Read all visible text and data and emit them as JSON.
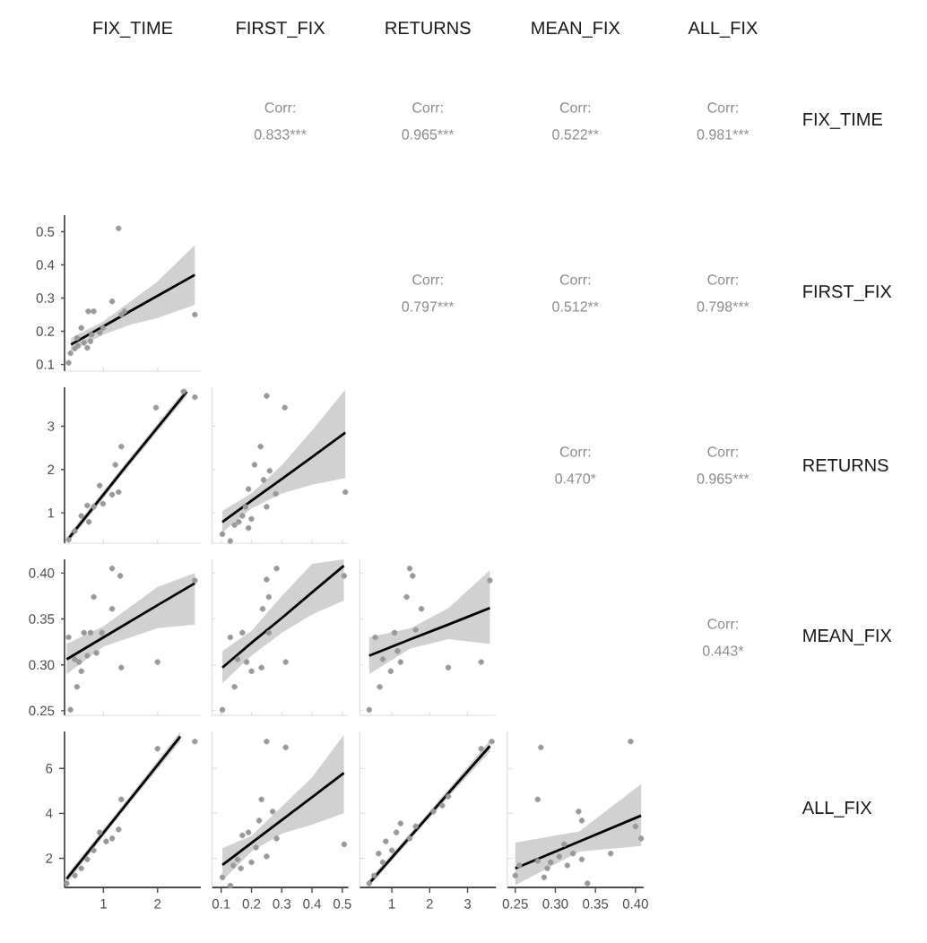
{
  "chart_data": [
    {
      "type": "other",
      "annotations": [
        "FIX_TIME",
        "FIRST_FIX",
        "RETURNS",
        "MEAN_FIX",
        "ALL_FIX",
        "FIX_TIME",
        "FIRST_FIX",
        "RETURNS",
        "MEAN_FIX",
        "ALL_FIX"
      ]
    },
    {
      "type": "other",
      "annotations": [
        "Corr:",
        "0.833***"
      ]
    },
    {
      "type": "other",
      "annotations": [
        "Corr:",
        "0.965***"
      ]
    },
    {
      "type": "other",
      "annotations": [
        "Corr:",
        "0.522**"
      ]
    },
    {
      "type": "other",
      "annotations": [
        "Corr:",
        "0.981***"
      ]
    },
    {
      "type": "scatter",
      "tick_labels": "y",
      "xlim": [
        0.28,
        2.8
      ],
      "xticks": [
        1,
        2
      ],
      "ylim": [
        0.08,
        0.55
      ],
      "yticks": [
        0.1,
        0.2,
        0.3,
        0.4,
        0.5
      ],
      "series": [
        {
          "type": "scatter",
          "color": "#999999",
          "x": [
            0.355,
            0.39,
            0.47,
            0.53,
            0.51,
            0.59,
            0.64,
            0.7,
            0.76,
            0.72,
            0.82,
            0.78,
            0.93,
            0.99,
            1.16,
            1.28,
            1.33,
            1.39,
            2.69
          ],
          "values": [
            0.105,
            0.134,
            0.148,
            0.156,
            0.18,
            0.21,
            0.165,
            0.15,
            0.17,
            0.26,
            0.26,
            0.19,
            0.196,
            0.21,
            0.29,
            0.51,
            0.25,
            0.26,
            0.25
          ]
        },
        {
          "type": "line",
          "color": "#000000",
          "x": [
            0.4,
            1.0,
            1.5,
            2.0,
            2.69
          ],
          "values": [
            0.16,
            0.215,
            0.261,
            0.307,
            0.37
          ],
          "lower": [
            0.14,
            0.19,
            0.22,
            0.24,
            0.28
          ],
          "upper": [
            0.18,
            0.23,
            0.29,
            0.35,
            0.46
          ]
        }
      ]
    },
    {
      "type": "other",
      "annotations": [
        "Corr:",
        "0.797***"
      ]
    },
    {
      "type": "other",
      "annotations": [
        "Corr:",
        "0.512**"
      ]
    },
    {
      "type": "other",
      "annotations": [
        "Corr:",
        "0.798***"
      ]
    },
    {
      "type": "scatter",
      "tick_labels": "y",
      "xlim": [
        0.28,
        2.8
      ],
      "xticks": [
        1,
        2
      ],
      "ylim": [
        0.3,
        3.9
      ],
      "yticks": [
        1,
        2,
        3
      ],
      "series": [
        {
          "type": "scatter",
          "color": "#999999",
          "x": [
            0.355,
            0.47,
            0.59,
            0.7,
            0.73,
            0.82,
            0.93,
            0.99,
            1.16,
            1.28,
            1.22,
            1.33,
            1.97,
            2.48,
            2.69
          ],
          "values": [
            0.38,
            0.58,
            0.93,
            1.17,
            0.79,
            1.14,
            1.63,
            1.21,
            1.42,
            1.48,
            2.11,
            2.53,
            3.43,
            3.8,
            3.67
          ]
        },
        {
          "type": "line",
          "color": "#000000",
          "x": [
            0.35,
            1.4,
            2.54
          ],
          "values": [
            0.4,
            2.05,
            3.8
          ],
          "lower": [
            0.31,
            1.97,
            3.7
          ],
          "upper": [
            0.49,
            2.13,
            3.9
          ]
        }
      ]
    },
    {
      "type": "scatter",
      "tick_labels": false,
      "xlim": [
        0.07,
        0.52
      ],
      "xticks": [
        0.1,
        0.2,
        0.3,
        0.4,
        0.5
      ],
      "ylim": [
        0.3,
        3.9
      ],
      "yticks": [
        1,
        2,
        3
      ],
      "series": [
        {
          "type": "scatter",
          "color": "#999999",
          "x": [
            0.104,
            0.13,
            0.144,
            0.158,
            0.17,
            0.18,
            0.19,
            0.2,
            0.21,
            0.19,
            0.23,
            0.24,
            0.25,
            0.25,
            0.26,
            0.28,
            0.31,
            0.51
          ],
          "values": [
            0.51,
            0.35,
            0.72,
            0.79,
            0.93,
            1.14,
            0.65,
            0.86,
            2.11,
            1.55,
            2.53,
            1.76,
            3.7,
            1.14,
            1.97,
            1.44,
            3.43,
            1.48
          ]
        },
        {
          "type": "line",
          "color": "#000000",
          "x": [
            0.104,
            0.2,
            0.3,
            0.4,
            0.51
          ],
          "values": [
            0.79,
            1.28,
            1.78,
            2.29,
            2.85
          ],
          "lower": [
            0.55,
            1.1,
            1.45,
            1.65,
            1.8
          ],
          "upper": [
            1.05,
            1.45,
            2.1,
            2.9,
            3.85
          ]
        }
      ]
    },
    {
      "type": "other",
      "annotations": [
        "Corr:",
        "0.470*"
      ]
    },
    {
      "type": "other",
      "annotations": [
        "Corr:",
        "0.965***"
      ]
    },
    {
      "type": "scatter",
      "tick_labels": "y",
      "xlim": [
        0.28,
        2.8
      ],
      "xticks": [
        1,
        2
      ],
      "ylim": [
        0.245,
        0.415
      ],
      "yticks": [
        {
          "value": 0.25,
          "label": "0.25"
        },
        {
          "value": 0.3,
          "label": "0.30"
        },
        {
          "value": 0.35,
          "label": "0.35"
        },
        {
          "value": 0.4,
          "label": "0.40"
        }
      ],
      "series": [
        {
          "type": "scatter",
          "color": "#999999",
          "x": [
            0.355,
            0.39,
            0.47,
            0.51,
            0.55,
            0.59,
            0.64,
            0.7,
            0.76,
            0.82,
            0.87,
            0.97,
            1.16,
            1.16,
            1.31,
            1.33,
            2.0,
            2.69
          ],
          "values": [
            0.33,
            0.251,
            0.306,
            0.276,
            0.303,
            0.293,
            0.335,
            0.31,
            0.335,
            0.374,
            0.313,
            0.335,
            0.405,
            0.361,
            0.397,
            0.297,
            0.303,
            0.392
          ]
        },
        {
          "type": "line",
          "color": "#000000",
          "x": [
            0.32,
            1.0,
            2.0,
            2.69
          ],
          "values": [
            0.306,
            0.33,
            0.365,
            0.389
          ],
          "lower": [
            0.29,
            0.32,
            0.34,
            0.344
          ],
          "upper": [
            0.323,
            0.342,
            0.385,
            0.4
          ]
        }
      ]
    },
    {
      "type": "scatter",
      "tick_labels": false,
      "xlim": [
        0.07,
        0.52
      ],
      "xticks": [
        0.1,
        0.2,
        0.3,
        0.4,
        0.5
      ],
      "ylim": [
        0.245,
        0.415
      ],
      "yticks": [
        0.25,
        0.3,
        0.35,
        0.4
      ],
      "series": [
        {
          "type": "scatter",
          "color": "#999999",
          "x": [
            0.104,
            0.13,
            0.144,
            0.154,
            0.17,
            0.184,
            0.2,
            0.233,
            0.237,
            0.25,
            0.257,
            0.257,
            0.283,
            0.313,
            0.506
          ],
          "values": [
            0.251,
            0.33,
            0.276,
            0.306,
            0.335,
            0.303,
            0.293,
            0.297,
            0.361,
            0.393,
            0.374,
            0.335,
            0.405,
            0.303,
            0.397
          ]
        },
        {
          "type": "line",
          "color": "#000000",
          "x": [
            0.104,
            0.2,
            0.3,
            0.4,
            0.505
          ],
          "values": [
            0.297,
            0.324,
            0.351,
            0.379,
            0.408
          ],
          "lower": [
            0.28,
            0.31,
            0.335,
            0.355,
            0.37
          ],
          "upper": [
            0.315,
            0.337,
            0.375,
            0.41,
            0.415
          ]
        }
      ]
    },
    {
      "type": "scatter",
      "tick_labels": false,
      "xlim": [
        0.15,
        3.75
      ],
      "xticks": [
        1,
        2,
        3
      ],
      "ylim": [
        0.245,
        0.415
      ],
      "yticks": [
        0.25,
        0.3,
        0.35,
        0.4
      ],
      "series": [
        {
          "type": "scatter",
          "color": "#999999",
          "x": [
            0.4,
            0.56,
            0.68,
            0.76,
            0.97,
            1.07,
            1.15,
            1.23,
            1.39,
            1.47,
            1.55,
            1.63,
            1.78,
            2.49,
            3.36,
            3.59
          ],
          "values": [
            0.251,
            0.33,
            0.276,
            0.306,
            0.293,
            0.335,
            0.315,
            0.303,
            0.374,
            0.405,
            0.397,
            0.338,
            0.361,
            0.297,
            0.303,
            0.392
          ]
        },
        {
          "type": "line",
          "color": "#000000",
          "x": [
            0.4,
            1.5,
            2.5,
            3.59
          ],
          "values": [
            0.31,
            0.328,
            0.344,
            0.362
          ],
          "lower": [
            0.29,
            0.318,
            0.328,
            0.323
          ],
          "upper": [
            0.33,
            0.34,
            0.362,
            0.403
          ]
        }
      ]
    },
    {
      "type": "other",
      "annotations": [
        "Corr:",
        "0.443*"
      ]
    },
    {
      "type": "scatter",
      "xlim": [
        0.28,
        2.8
      ],
      "xticks": [
        1,
        2
      ],
      "ylim": [
        0.7,
        7.65
      ],
      "yticks": [
        2,
        4,
        6
      ],
      "series": [
        {
          "type": "scatter",
          "color": "#999999",
          "x": [
            0.32,
            0.47,
            0.59,
            0.7,
            0.82,
            0.93,
            1.05,
            1.16,
            1.28,
            1.33,
            2.0,
            2.69
          ],
          "values": [
            0.88,
            1.23,
            1.55,
            1.95,
            2.35,
            3.15,
            2.75,
            2.88,
            3.28,
            4.62,
            6.88,
            7.2
          ]
        },
        {
          "type": "line",
          "color": "#000000",
          "x": [
            0.32,
            1.4,
            2.42
          ],
          "values": [
            1.08,
            4.34,
            7.42
          ],
          "lower": [
            0.9,
            4.2,
            7.2
          ],
          "upper": [
            1.25,
            4.5,
            7.64
          ]
        }
      ]
    },
    {
      "type": "scatter",
      "tick_labels": "x",
      "xlim": [
        0.07,
        0.52
      ],
      "xticks": [
        0.1,
        0.2,
        0.3,
        0.4,
        0.5
      ],
      "ylim": [
        0.7,
        7.65
      ],
      "yticks": [
        2,
        4,
        6
      ],
      "series": [
        {
          "type": "scatter",
          "color": "#999999",
          "x": [
            0.104,
            0.13,
            0.14,
            0.154,
            0.165,
            0.17,
            0.19,
            0.2,
            0.215,
            0.225,
            0.233,
            0.25,
            0.25,
            0.27,
            0.283,
            0.313,
            0.506
          ],
          "values": [
            1.15,
            0.78,
            1.68,
            1.95,
            1.55,
            3.02,
            3.15,
            1.82,
            2.48,
            3.68,
            4.62,
            2.08,
            7.2,
            4.08,
            2.88,
            6.94,
            2.62
          ]
        },
        {
          "type": "line",
          "color": "#000000",
          "x": [
            0.104,
            0.2,
            0.3,
            0.4,
            0.505
          ],
          "values": [
            1.7,
            2.68,
            3.7,
            4.72,
            5.8
          ],
          "lower": [
            1.0,
            2.3,
            3.1,
            3.5,
            4.0
          ],
          "upper": [
            2.45,
            3.0,
            4.3,
            5.6,
            7.5
          ]
        }
      ]
    },
    {
      "type": "scatter",
      "tick_labels": "x",
      "xlim": [
        0.15,
        3.75
      ],
      "xticks": [
        1,
        2,
        3
      ],
      "ylim": [
        0.7,
        7.65
      ],
      "yticks": [
        2,
        4,
        6
      ],
      "series": [
        {
          "type": "scatter",
          "color": "#999999",
          "x": [
            0.4,
            0.53,
            0.65,
            0.76,
            0.84,
            1.0,
            1.12,
            1.23,
            1.47,
            1.63,
            2.1,
            2.33,
            2.49,
            3.36,
            3.64
          ],
          "values": [
            0.88,
            1.23,
            2.21,
            1.82,
            2.75,
            2.35,
            3.15,
            3.55,
            2.88,
            3.42,
            4.08,
            4.35,
            4.75,
            6.88,
            7.2
          ]
        },
        {
          "type": "line",
          "color": "#000000",
          "x": [
            0.4,
            2.0,
            3.59
          ],
          "values": [
            0.88,
            3.95,
            7.0
          ],
          "lower": [
            0.75,
            3.8,
            6.75
          ],
          "upper": [
            1.05,
            4.1,
            7.25
          ]
        }
      ]
    },
    {
      "type": "scatter",
      "tick_labels": "x",
      "xlim": [
        0.24,
        0.41
      ],
      "xticks": [
        {
          "value": 0.25,
          "label": "0.25"
        },
        {
          "value": 0.3,
          "label": "0.30"
        },
        {
          "value": 0.35,
          "label": "0.35"
        },
        {
          "value": 0.4,
          "label": "0.40"
        }
      ],
      "ylim": [
        0.7,
        7.65
      ],
      "yticks": [
        2,
        4,
        6
      ],
      "series": [
        {
          "type": "scatter",
          "color": "#999999",
          "x": [
            0.25,
            0.255,
            0.278,
            0.278,
            0.282,
            0.286,
            0.29,
            0.294,
            0.305,
            0.311,
            0.315,
            0.322,
            0.329,
            0.333,
            0.333,
            0.34,
            0.369,
            0.394,
            0.4,
            0.407
          ],
          "values": [
            1.23,
            1.68,
            1.88,
            4.62,
            6.94,
            1.15,
            1.55,
            1.82,
            2.08,
            2.62,
            1.68,
            2.21,
            4.08,
            3.68,
            1.95,
            0.88,
            2.21,
            7.2,
            3.42,
            2.88
          ]
        },
        {
          "type": "line",
          "color": "#000000",
          "x": [
            0.25,
            0.33,
            0.407
          ],
          "values": [
            1.55,
            2.75,
            3.9
          ],
          "lower": [
            0.8,
            2.3,
            2.55
          ],
          "upper": [
            2.7,
            3.2,
            5.3
          ]
        }
      ]
    }
  ]
}
